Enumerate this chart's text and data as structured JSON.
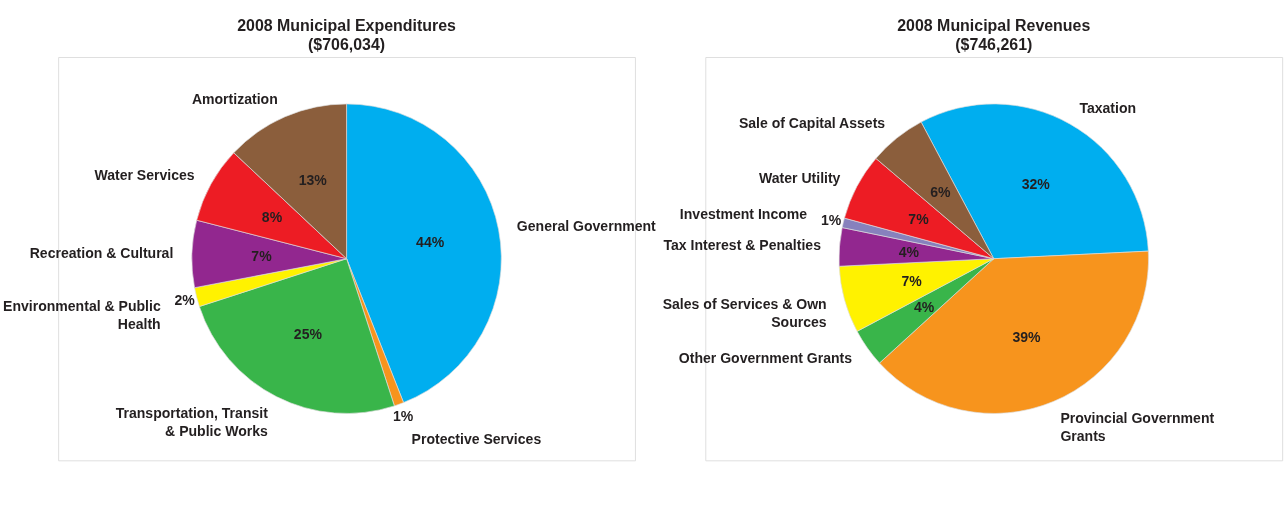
{
  "chart_data": [
    {
      "type": "pie",
      "title": "2008 Municipal Expenditures",
      "subtitle": "($706,034)",
      "categories": [
        "General Government",
        "Protective Services",
        "Transportation, Transit & Public Works",
        "Environmental & Public Health",
        "Recreation & Cultural",
        "Water Services",
        "Amortization"
      ],
      "values": [
        44,
        1,
        25,
        2,
        7,
        8,
        13
      ],
      "colors": [
        "#00aeef",
        "#f7941d",
        "#39b54a",
        "#fff200",
        "#92278f",
        "#ed1c24",
        "#8b5e3c"
      ],
      "value_labels": [
        "44%",
        "1%",
        "25%",
        "2%",
        "7%",
        "8%",
        "13%"
      ]
    },
    {
      "type": "pie",
      "title": "2008 Municipal Revenues",
      "subtitle": "($746,261)",
      "categories": [
        "Taxation",
        "Provincial Government Grants",
        "Other Government Grants",
        "Sales of Services & Own Sources",
        "Tax Interest & Penalties",
        "Investment Income",
        "Water Utility",
        "Sale of Capital Assets"
      ],
      "values": [
        32,
        39,
        4,
        7,
        4,
        1,
        7,
        6
      ],
      "colors": [
        "#00aeef",
        "#f7941d",
        "#39b54a",
        "#fff200",
        "#92278f",
        "#8781bd",
        "#ed1c24",
        "#8b5e3c"
      ],
      "value_labels": [
        "32%",
        "39%",
        "4%",
        "7%",
        "4%",
        "1%",
        "7%",
        "6%"
      ]
    }
  ]
}
